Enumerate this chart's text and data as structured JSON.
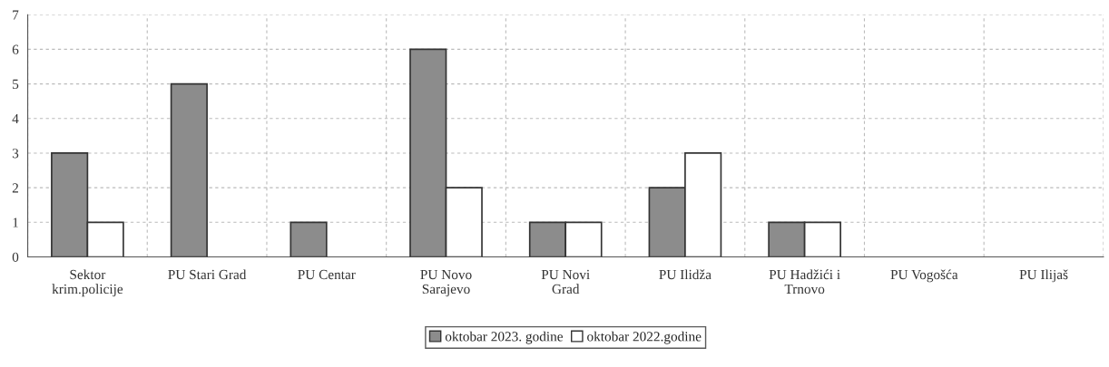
{
  "chart_data": {
    "type": "bar",
    "categories": [
      "Sektor\nkrim.policije",
      "PU Stari Grad",
      "PU Centar",
      "PU Novo\nSarajevo",
      "PU Novi\nGrad",
      "PU Ilidža",
      "PU Hadžići i\nTrnovo",
      "PU Vogošća",
      "PU Ilijaš"
    ],
    "series": [
      {
        "name": "oktobar 2023. godine",
        "color": "#8c8c8c",
        "values": [
          3,
          5,
          1,
          6,
          1,
          2,
          1,
          0,
          0
        ]
      },
      {
        "name": "oktobar 2022.godine",
        "color": "#ffffff",
        "values": [
          1,
          0,
          0,
          2,
          1,
          3,
          1,
          0,
          0
        ]
      }
    ],
    "ylim": [
      0,
      7
    ],
    "yticks": [
      0,
      1,
      2,
      3,
      4,
      5,
      6,
      7
    ],
    "grid": true,
    "legend": "bottom"
  }
}
